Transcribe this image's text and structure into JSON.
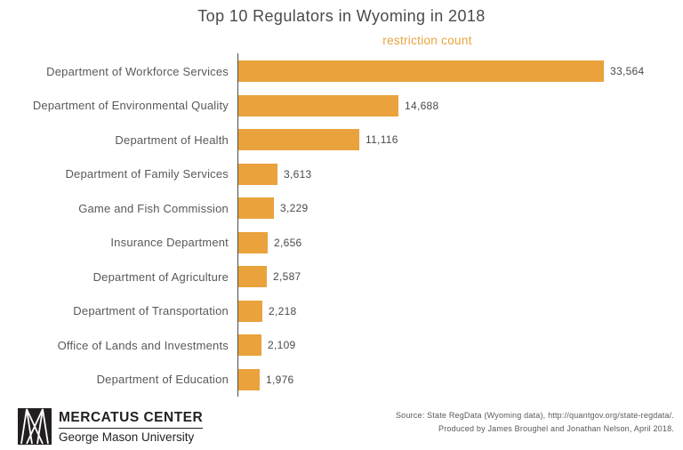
{
  "title": "Top 10 Regulators in Wyoming in 2018",
  "chart_data": {
    "type": "bar",
    "orientation": "horizontal",
    "axis_label": "restriction count",
    "categories": [
      "Department of Workforce Services",
      "Department of Environmental Quality",
      "Department of Health",
      "Department of Family Services",
      "Game and Fish Commission",
      "Insurance Department",
      "Department of Agriculture",
      "Department of Transportation",
      "Office of Lands and Investments",
      "Department of Education"
    ],
    "values": [
      33564,
      14688,
      11116,
      3613,
      3229,
      2656,
      2587,
      2218,
      2109,
      1976
    ],
    "value_labels": [
      "33,564",
      "14,688",
      "11,116",
      "3,613",
      "3,229",
      "2,656",
      "2,587",
      "2,218",
      "2,109",
      "1,976"
    ],
    "xlim": [
      0,
      34000
    ],
    "grid": false,
    "legend": "none",
    "bar_color": "#E9A23C"
  },
  "colors": {
    "accent_orange": "#E9A23C",
    "title_text": "#4A4A4A",
    "category_text": "#58595B",
    "value_text": "#4A4A4A",
    "axis_line": "#4D4D4D",
    "logo_black": "#231F20",
    "background": "#FFFFFF"
  },
  "footer": {
    "logo_title": "MERCATUS CENTER",
    "logo_subtitle": "George Mason University",
    "source_line1": "Source: State RegData (Wyoming data), http://quantgov.org/state-regdata/.",
    "source_line2": "Produced by James Broughel and Jonathan Nelson, April 2018."
  }
}
